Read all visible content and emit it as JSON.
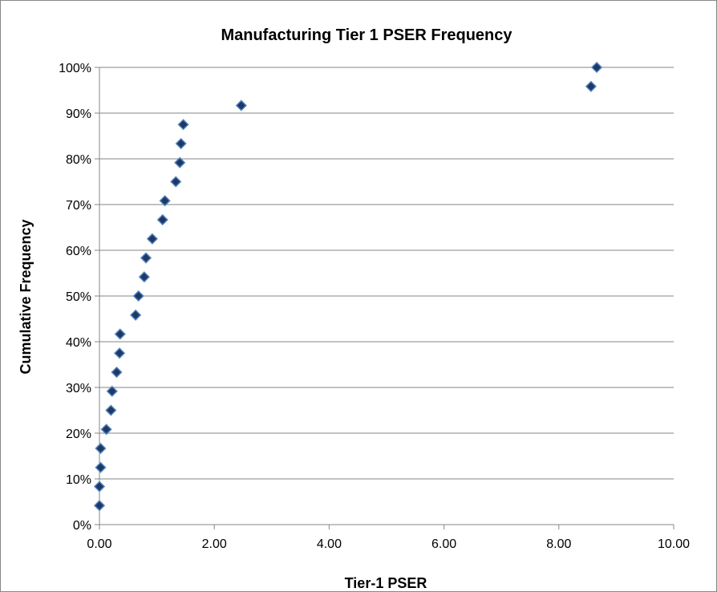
{
  "chart_data": {
    "type": "scatter",
    "title": "Manufacturing Tier 1 PSER Frequency",
    "xlabel": "Tier-1 PSER",
    "ylabel": "Cumulative Frequency",
    "xlim": [
      0,
      10
    ],
    "ylim": [
      0,
      1
    ],
    "x_ticks": [
      0,
      2,
      4,
      6,
      8,
      10
    ],
    "x_tick_labels": [
      "0.00",
      "2.00",
      "4.00",
      "6.00",
      "8.00",
      "10.00"
    ],
    "y_ticks": [
      0,
      0.1,
      0.2,
      0.3,
      0.4,
      0.5,
      0.6,
      0.7,
      0.8,
      0.9,
      1.0
    ],
    "y_tick_labels": [
      "0%",
      "10%",
      "20%",
      "30%",
      "40%",
      "50%",
      "60%",
      "70%",
      "80%",
      "90%",
      "100%"
    ],
    "grid": "horizontal",
    "legend": "none",
    "marker": "diamond",
    "marker_color": "#1f3864",
    "marker_edge_color": "#4f81bd",
    "series": [
      {
        "points": [
          {
            "x": 0.0,
            "y": 0.0417
          },
          {
            "x": 0.0,
            "y": 0.0833
          },
          {
            "x": 0.02,
            "y": 0.125
          },
          {
            "x": 0.02,
            "y": 0.1667
          },
          {
            "x": 0.12,
            "y": 0.2083
          },
          {
            "x": 0.2,
            "y": 0.25
          },
          {
            "x": 0.22,
            "y": 0.2917
          },
          {
            "x": 0.3,
            "y": 0.3333
          },
          {
            "x": 0.35,
            "y": 0.375
          },
          {
            "x": 0.36,
            "y": 0.4167
          },
          {
            "x": 0.63,
            "y": 0.4583
          },
          {
            "x": 0.68,
            "y": 0.5
          },
          {
            "x": 0.78,
            "y": 0.5417
          },
          {
            "x": 0.81,
            "y": 0.5833
          },
          {
            "x": 0.92,
            "y": 0.625
          },
          {
            "x": 1.1,
            "y": 0.6667
          },
          {
            "x": 1.14,
            "y": 0.7083
          },
          {
            "x": 1.33,
            "y": 0.75
          },
          {
            "x": 1.4,
            "y": 0.7917
          },
          {
            "x": 1.42,
            "y": 0.8333
          },
          {
            "x": 1.46,
            "y": 0.875
          },
          {
            "x": 2.47,
            "y": 0.9167
          },
          {
            "x": 8.56,
            "y": 0.9583
          },
          {
            "x": 8.66,
            "y": 1.0
          }
        ]
      }
    ]
  }
}
